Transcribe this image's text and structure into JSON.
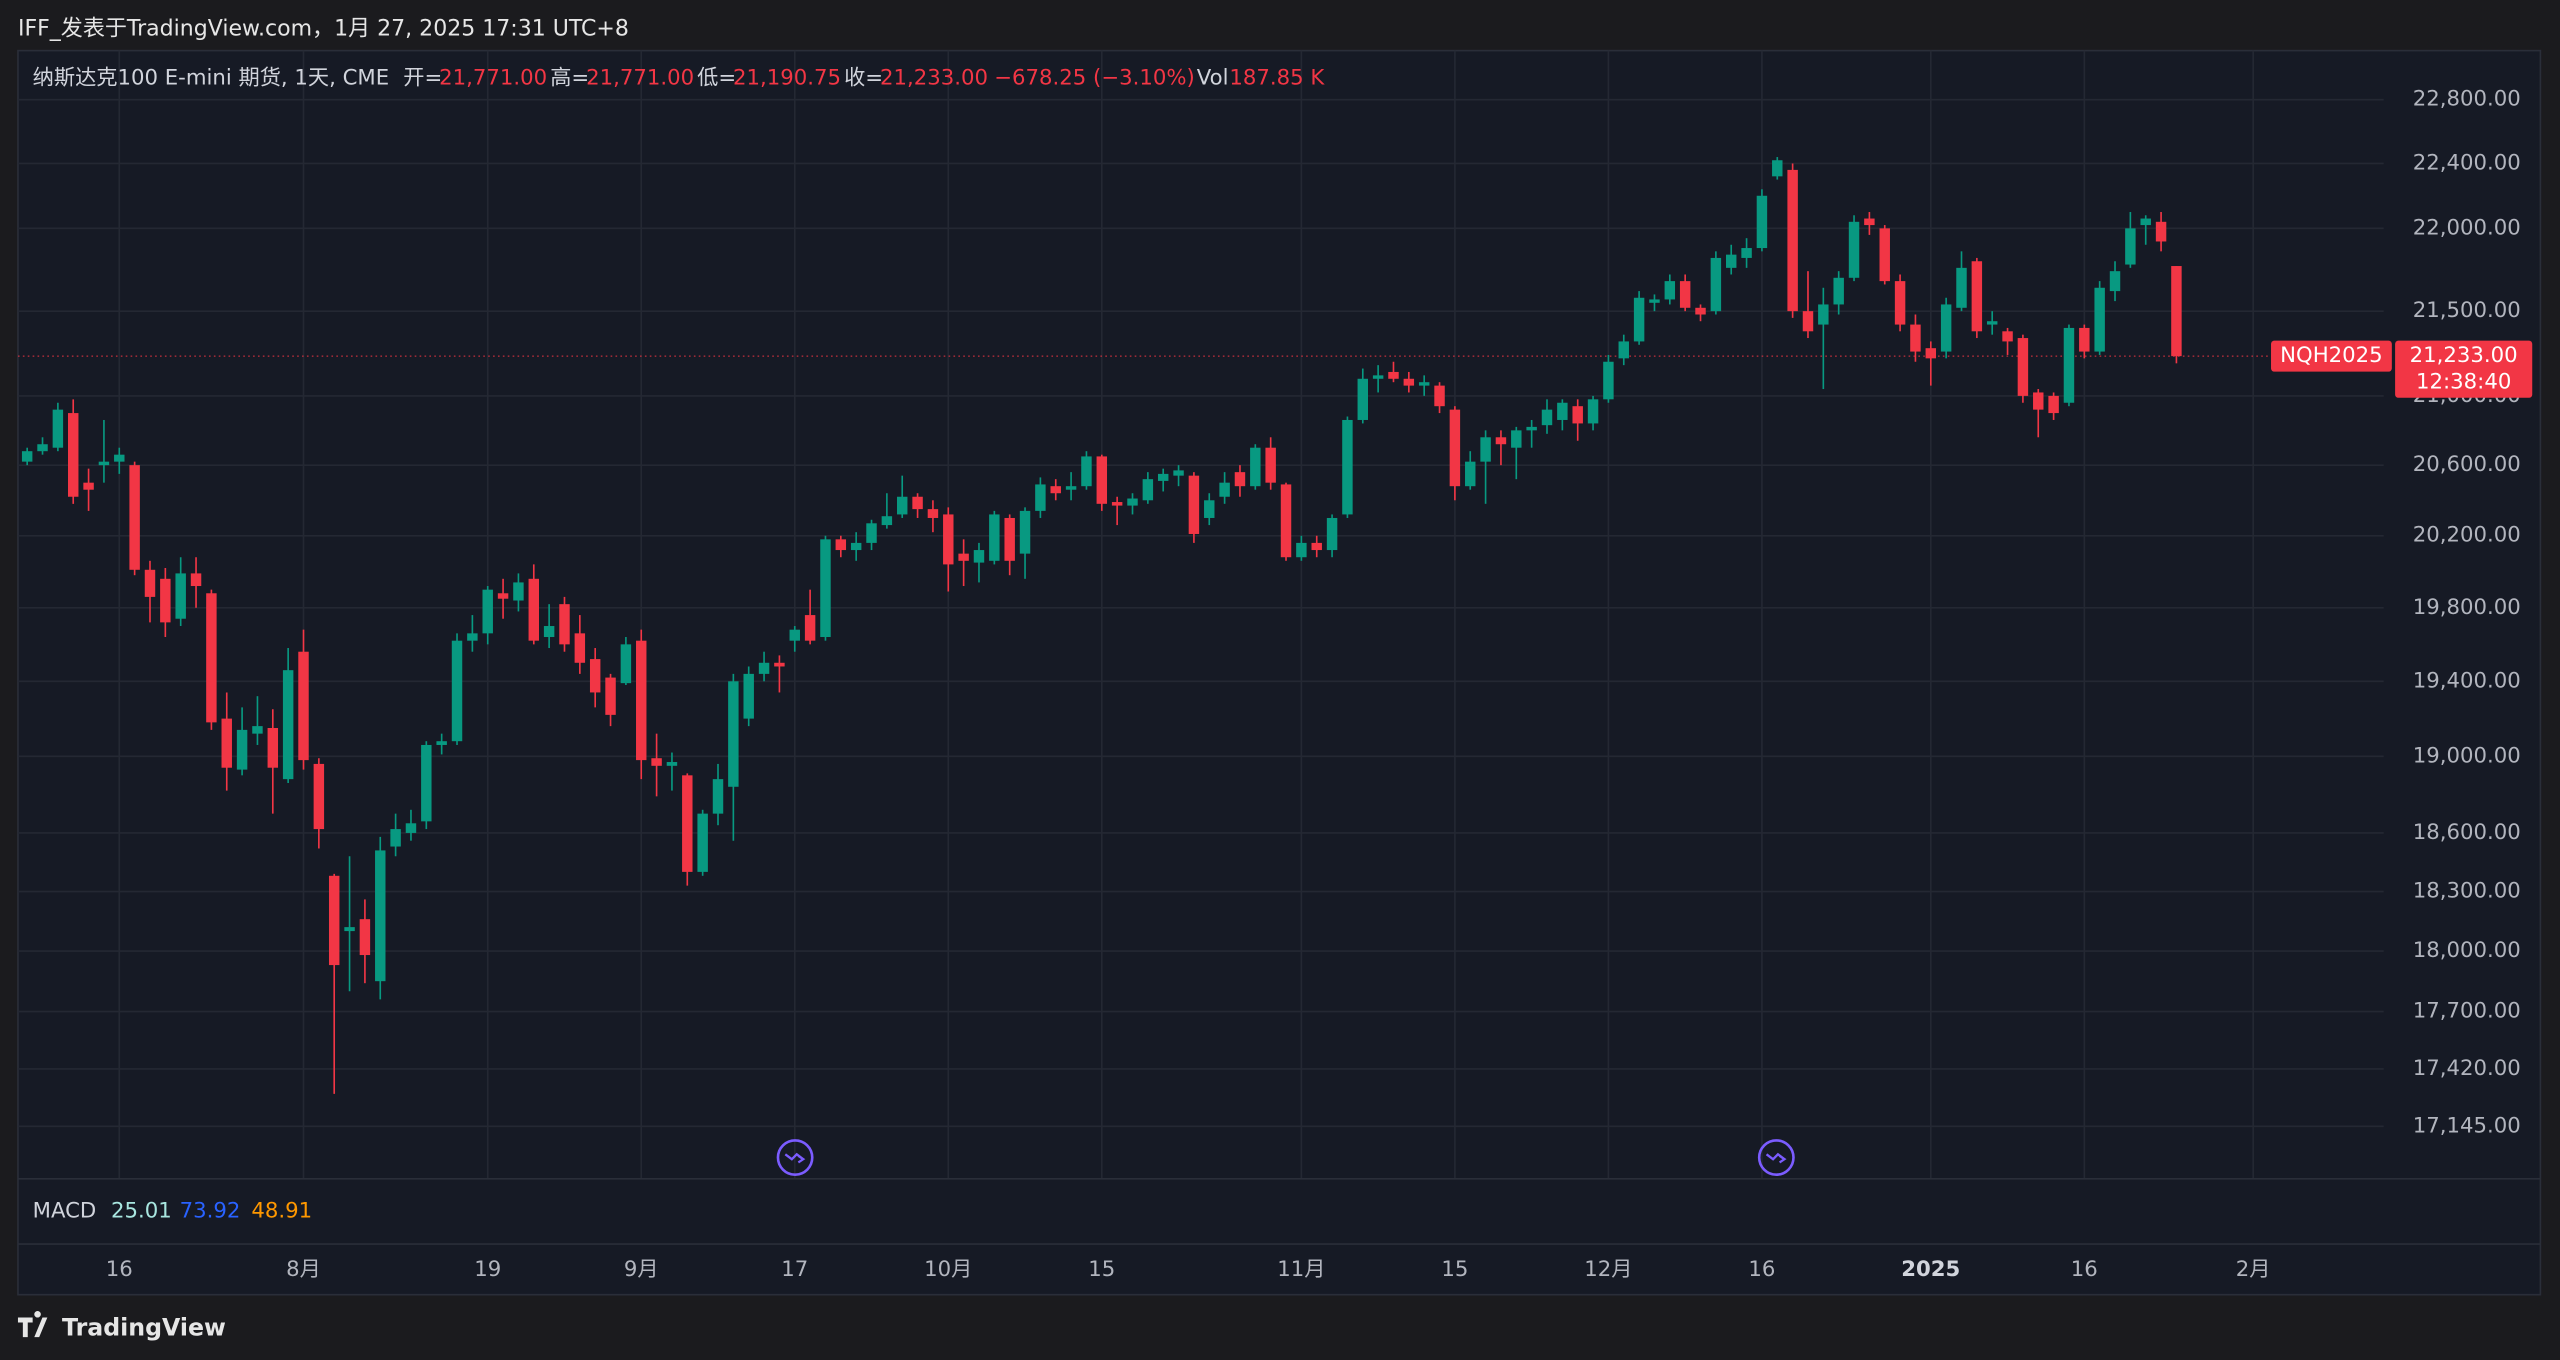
{
  "header": {
    "title": "IFF_发表于TradingView.com，1月 27, 2025 17:31 UTC+8"
  },
  "legend": {
    "symbol": "纳斯达克100 E-mini 期货, 1天, CME",
    "open_label": "开=",
    "open": "21,771.00",
    "high_label": "高=",
    "high": "21,771.00",
    "low_label": "低=",
    "low": "21,190.75",
    "close_label": "收=",
    "close": "21,233.00",
    "change": "−678.25 (−3.10%)",
    "volume_label": "Vol",
    "volume": "187.85 K"
  },
  "macd": {
    "label": "MACD",
    "values": [
      "25.01",
      "73.92",
      "48.91"
    ]
  },
  "price_tag": {
    "symbol": "NQH2025",
    "price": "21,233.00",
    "countdown": "12:38:40"
  },
  "footer": {
    "brand": "TradingView"
  },
  "chart_data": {
    "type": "candlestick",
    "log_scale": true,
    "grid": true,
    "up_color": "#089981",
    "down_color": "#f23645",
    "xlim": [
      -0.6,
      153.5
    ],
    "xticks": [
      {
        "value": 6,
        "label": "16"
      },
      {
        "value": 18,
        "label": "8月"
      },
      {
        "value": 30,
        "label": "19"
      },
      {
        "value": 40,
        "label": "9月"
      },
      {
        "value": 50,
        "label": "17"
      },
      {
        "value": 60,
        "label": "10月"
      },
      {
        "value": 70,
        "label": "15"
      },
      {
        "value": 83,
        "label": "11月"
      },
      {
        "value": 93,
        "label": "15"
      },
      {
        "value": 103,
        "label": "12月"
      },
      {
        "value": 113,
        "label": "16"
      },
      {
        "value": 124,
        "label": "2025"
      },
      {
        "value": 134,
        "label": "16"
      },
      {
        "value": 145,
        "label": "2月"
      }
    ],
    "ylim": [
      16897,
      23113
    ],
    "yticks": [
      {
        "value": 22800,
        "label": "22,800.00"
      },
      {
        "value": 22400,
        "label": "22,400.00"
      },
      {
        "value": 22000,
        "label": "22,000.00"
      },
      {
        "value": 21500,
        "label": "21,500.00"
      },
      {
        "value": 21000,
        "label": "21,000.00"
      },
      {
        "value": 20600,
        "label": "20,600.00"
      },
      {
        "value": 20200,
        "label": "20,200.00"
      },
      {
        "value": 19800,
        "label": "19,800.00"
      },
      {
        "value": 19400,
        "label": "19,400.00"
      },
      {
        "value": 19000,
        "label": "19,000.00"
      },
      {
        "value": 18600,
        "label": "18,600.00"
      },
      {
        "value": 18300,
        "label": "18,300.00"
      },
      {
        "value": 18000,
        "label": "18,000.00"
      },
      {
        "value": 17700,
        "label": "17,700.00"
      },
      {
        "value": 17420,
        "label": "17,420.00"
      },
      {
        "value": 17145,
        "label": "17,145.00"
      }
    ],
    "open": [
      20620,
      20680,
      20700,
      20900,
      20500,
      20600,
      20620,
      20600,
      20010,
      19960,
      19740,
      19990,
      19880,
      19200,
      18930,
      19120,
      19150,
      18880,
      19560,
      18960,
      18380,
      18100,
      18160,
      17850,
      18530,
      18600,
      18660,
      19060,
      19080,
      19620,
      19660,
      19880,
      19840,
      19960,
      19640,
      19820,
      19660,
      19520,
      19420,
      19390,
      19620,
      18990,
      18950,
      18900,
      18400,
      18700,
      18840,
      19200,
      19440,
      19500,
      19620,
      19760,
      19640,
      20180,
      20120,
      20160,
      20260,
      20320,
      20420,
      20350,
      20320,
      20100,
      20050,
      20060,
      20300,
      20100,
      20340,
      20480,
      20460,
      20480,
      20650,
      20390,
      20370,
      20400,
      20510,
      20540,
      20540,
      20300,
      20420,
      20560,
      20480,
      20700,
      20490,
      20080,
      20160,
      20120,
      20320,
      20860,
      21100,
      21140,
      21100,
      21060,
      21060,
      20920,
      20480,
      20620,
      20760,
      20700,
      20800,
      20830,
      20860,
      20940,
      20840,
      20980,
      21220,
      21320,
      21550,
      21570,
      21680,
      21520,
      21500,
      21760,
      21820,
      21880,
      22320,
      22360,
      21500,
      21420,
      21540,
      21700,
      22060,
      22000,
      21680,
      21420,
      21280,
      21260,
      21520,
      21800,
      21420,
      21380,
      21340,
      21020,
      21000,
      20960,
      21400,
      21260,
      21620,
      21780,
      22020,
      22040,
      21771
    ],
    "high": [
      20700,
      20760,
      20960,
      20980,
      20580,
      20860,
      20700,
      20620,
      20060,
      20020,
      20080,
      20080,
      19900,
      19340,
      19260,
      19320,
      19250,
      19580,
      19680,
      18990,
      18390,
      18480,
      18260,
      18580,
      18700,
      18720,
      19080,
      19120,
      19660,
      19760,
      19920,
      19960,
      19990,
      20040,
      19820,
      19860,
      19760,
      19580,
      19440,
      19640,
      19680,
      19120,
      19020,
      18910,
      18720,
      18960,
      19440,
      19480,
      19560,
      19540,
      19700,
      19900,
      20200,
      20200,
      20220,
      20290,
      20440,
      20540,
      20440,
      20400,
      20360,
      20180,
      20160,
      20340,
      20320,
      20360,
      20530,
      20520,
      20560,
      20680,
      20660,
      20420,
      20440,
      20560,
      20580,
      20600,
      20560,
      20440,
      20560,
      20600,
      20720,
      20760,
      20500,
      20200,
      20200,
      20320,
      20880,
      21160,
      21180,
      21200,
      21140,
      21120,
      21080,
      20940,
      20680,
      20800,
      20800,
      20820,
      20860,
      20980,
      20980,
      20980,
      21000,
      21240,
      21360,
      21620,
      21600,
      21720,
      21720,
      21540,
      21860,
      21900,
      21940,
      22240,
      22440,
      22400,
      21740,
      21640,
      21740,
      22080,
      22100,
      22020,
      21720,
      21480,
      21320,
      21580,
      21860,
      21820,
      21500,
      21400,
      21360,
      21040,
      21020,
      21420,
      21420,
      21680,
      21800,
      22100,
      22080,
      22100,
      21771
    ],
    "low": [
      20600,
      20660,
      20680,
      20380,
      20340,
      20500,
      20550,
      19980,
      19720,
      19640,
      19700,
      19800,
      19140,
      18820,
      18900,
      19060,
      18700,
      18860,
      18930,
      18520,
      17300,
      17800,
      17840,
      17760,
      18480,
      18560,
      18620,
      19010,
      19060,
      19560,
      19600,
      19740,
      19780,
      19600,
      19580,
      19560,
      19440,
      19260,
      19160,
      19380,
      18880,
      18790,
      18820,
      18330,
      18380,
      18640,
      18560,
      19160,
      19400,
      19340,
      19560,
      19600,
      19620,
      20080,
      20060,
      20120,
      20240,
      20300,
      20300,
      20220,
      19890,
      19920,
      19940,
      20040,
      19980,
      19960,
      20300,
      20400,
      20400,
      20460,
      20340,
      20260,
      20320,
      20380,
      20450,
      20480,
      20160,
      20260,
      20380,
      20420,
      20460,
      20460,
      20060,
      20060,
      20080,
      20080,
      20300,
      20840,
      21020,
      21080,
      21020,
      21000,
      20900,
      20400,
      20460,
      20380,
      20600,
      20520,
      20700,
      20780,
      20800,
      20740,
      20800,
      20960,
      21180,
      21300,
      21500,
      21540,
      21500,
      21440,
      21480,
      21720,
      21760,
      21860,
      22300,
      21460,
      21340,
      21040,
      21480,
      21680,
      21960,
      21660,
      21380,
      21200,
      21060,
      21220,
      21500,
      21340,
      21360,
      21240,
      20960,
      20760,
      20860,
      20940,
      21220,
      21240,
      21560,
      21760,
      21900,
      21860,
      21190.75
    ],
    "close": [
      20680,
      20720,
      20920,
      20420,
      20460,
      20620,
      20660,
      20010,
      19860,
      19720,
      19990,
      19920,
      19180,
      18940,
      19140,
      19160,
      18940,
      19460,
      18980,
      18620,
      17930,
      18120,
      17980,
      18510,
      18620,
      18650,
      19060,
      19080,
      19620,
      19660,
      19900,
      19850,
      19940,
      19620,
      19700,
      19600,
      19500,
      19340,
      19220,
      19600,
      18980,
      18950,
      18970,
      18400,
      18700,
      18880,
      19400,
      19440,
      19500,
      19480,
      19680,
      19620,
      20180,
      20120,
      20160,
      20270,
      20310,
      20420,
      20350,
      20300,
      20040,
      20060,
      20120,
      20320,
      20060,
      20340,
      20490,
      20440,
      20480,
      20650,
      20380,
      20370,
      20410,
      20520,
      20550,
      20570,
      20210,
      20400,
      20500,
      20480,
      20700,
      20500,
      20080,
      20160,
      20120,
      20300,
      20860,
      21100,
      21120,
      21100,
      21060,
      21080,
      20940,
      20480,
      20620,
      20760,
      20720,
      20800,
      20820,
      20920,
      20960,
      20840,
      20980,
      21200,
      21320,
      21580,
      21570,
      21680,
      21520,
      21480,
      21820,
      21840,
      21880,
      22200,
      22420,
      21500,
      21380,
      21540,
      21700,
      22040,
      22020,
      21680,
      21420,
      21260,
      21220,
      21540,
      21760,
      21380,
      21440,
      21320,
      21000,
      20920,
      20900,
      21400,
      21260,
      21640,
      21740,
      22000,
      22060,
      21920,
      21233
    ]
  }
}
